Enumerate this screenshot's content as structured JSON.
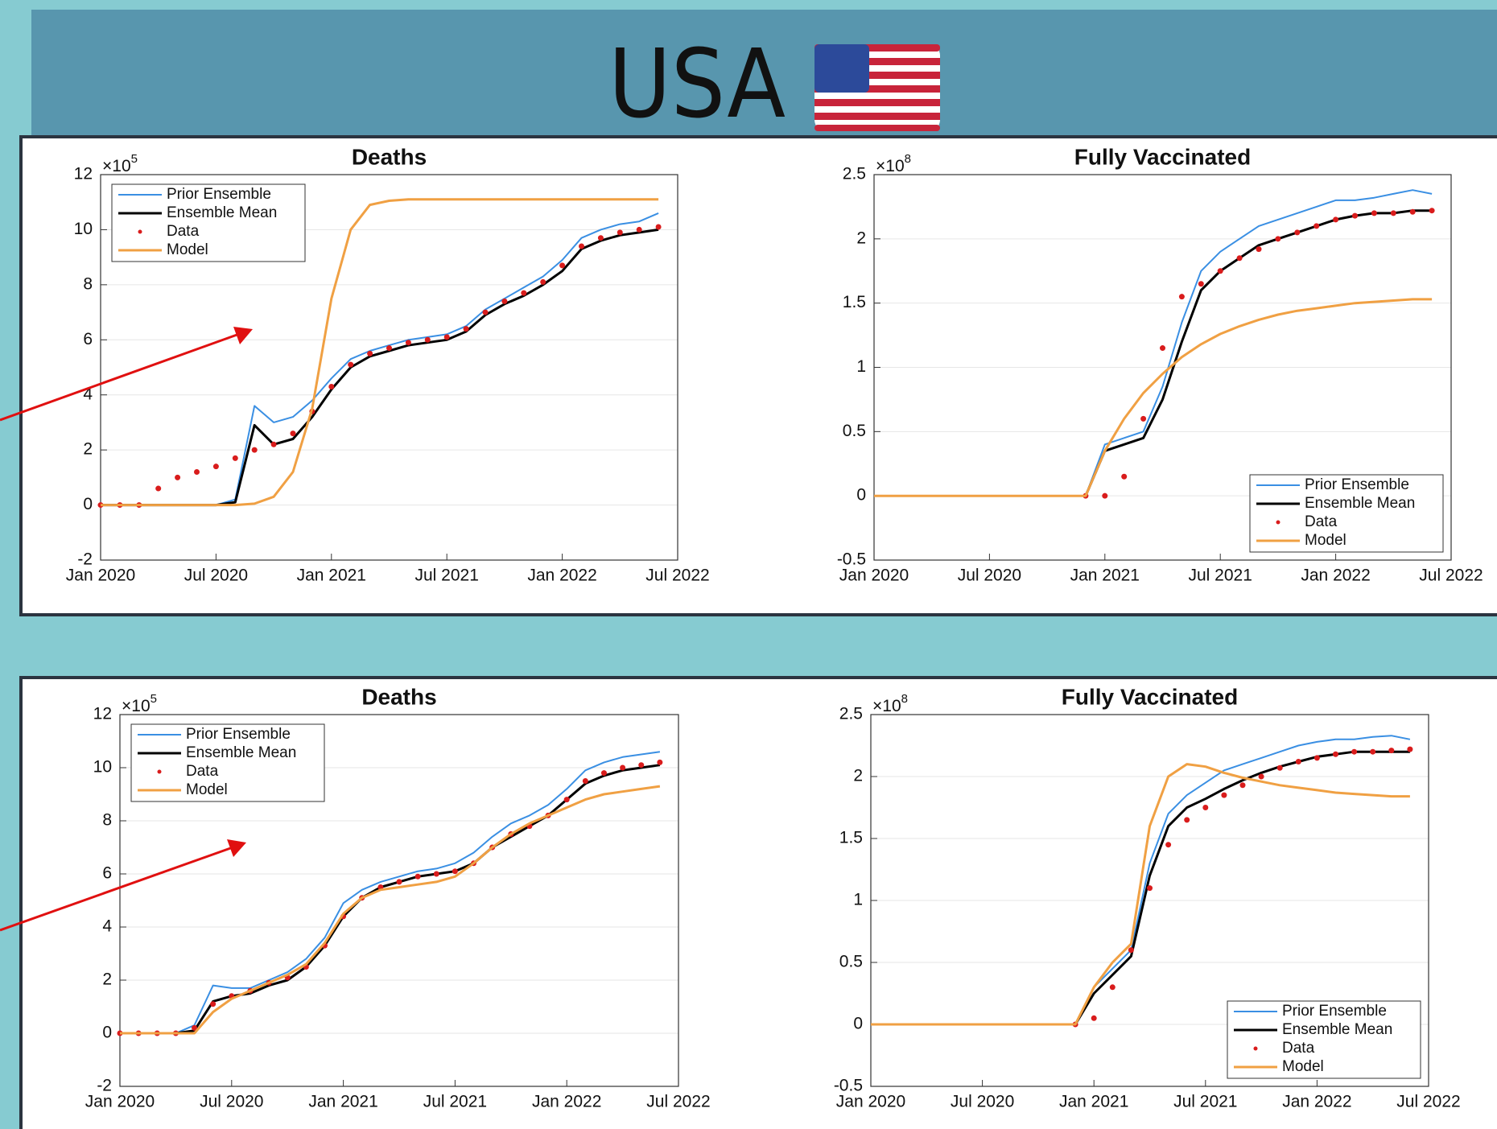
{
  "header": {
    "title": "USA"
  },
  "chart_data": [
    {
      "type": "line",
      "title": "Deaths",
      "y_multiplier": "×10",
      "y_exponent": "5",
      "legend": "upper left",
      "grid": true,
      "x": [
        "2020-01",
        "2020-02",
        "2020-03",
        "2020-04",
        "2020-05",
        "2020-06",
        "2020-07",
        "2020-08",
        "2020-09",
        "2020-10",
        "2020-11",
        "2020-12",
        "2021-01",
        "2021-02",
        "2021-03",
        "2021-04",
        "2021-05",
        "2021-06",
        "2021-07",
        "2021-08",
        "2021-09",
        "2021-10",
        "2021-11",
        "2021-12",
        "2022-01",
        "2022-02",
        "2022-03",
        "2022-04",
        "2022-05",
        "2022-06"
      ],
      "xlim": [
        "2020-01",
        "2022-07"
      ],
      "xticks": [
        {
          "value": "2020-01",
          "label": "Jan 2020"
        },
        {
          "value": "2020-07",
          "label": "Jul 2020"
        },
        {
          "value": "2021-01",
          "label": "Jan 2021"
        },
        {
          "value": "2021-07",
          "label": "Jul 2021"
        },
        {
          "value": "2022-01",
          "label": "Jan 2022"
        },
        {
          "value": "2022-07",
          "label": "Jul 2022"
        }
      ],
      "ylim": [
        -2,
        12
      ],
      "yticks": [
        -2,
        0,
        2,
        4,
        6,
        8,
        10,
        12
      ],
      "series": [
        {
          "name": "Prior Ensemble",
          "color": "#3a8fe3",
          "style": "line",
          "values": [
            0,
            0,
            0,
            0,
            0,
            0,
            0,
            0.2,
            3.6,
            3.0,
            3.2,
            3.8,
            4.6,
            5.3,
            5.6,
            5.8,
            6.0,
            6.1,
            6.2,
            6.5,
            7.1,
            7.5,
            7.9,
            8.3,
            8.9,
            9.7,
            10.0,
            10.2,
            10.3,
            10.6
          ]
        },
        {
          "name": "Ensemble Mean",
          "color": "#000000",
          "style": "line",
          "values": [
            0,
            0,
            0,
            0,
            0,
            0,
            0,
            0.1,
            2.9,
            2.2,
            2.4,
            3.2,
            4.2,
            5.0,
            5.4,
            5.6,
            5.8,
            5.9,
            6.0,
            6.3,
            6.9,
            7.3,
            7.6,
            8.0,
            8.5,
            9.3,
            9.6,
            9.8,
            9.9,
            10.0
          ]
        },
        {
          "name": "Data",
          "color": "#d91c1c",
          "style": "dots",
          "values": [
            0,
            0,
            0,
            0.6,
            1.0,
            1.2,
            1.4,
            1.7,
            2.0,
            2.2,
            2.6,
            3.4,
            4.3,
            5.1,
            5.5,
            5.7,
            5.9,
            6.0,
            6.1,
            6.4,
            7.0,
            7.4,
            7.7,
            8.1,
            8.7,
            9.4,
            9.7,
            9.9,
            10.0,
            10.1
          ]
        },
        {
          "name": "Model",
          "color": "#f0a043",
          "style": "line",
          "values": [
            0,
            0,
            0,
            0,
            0,
            0,
            0,
            0,
            0.05,
            0.3,
            1.2,
            3.5,
            7.5,
            10.0,
            10.9,
            11.05,
            11.1,
            11.1,
            11.1,
            11.1,
            11.1,
            11.1,
            11.1,
            11.1,
            11.1,
            11.1,
            11.1,
            11.1,
            11.1,
            11.1
          ]
        }
      ]
    },
    {
      "type": "line",
      "title": "Fully Vaccinated",
      "y_multiplier": "×10",
      "y_exponent": "8",
      "legend": "lower right",
      "grid": true,
      "x": [
        "2020-01",
        "2020-02",
        "2020-03",
        "2020-04",
        "2020-05",
        "2020-06",
        "2020-07",
        "2020-08",
        "2020-09",
        "2020-10",
        "2020-11",
        "2020-12",
        "2021-01",
        "2021-02",
        "2021-03",
        "2021-04",
        "2021-05",
        "2021-06",
        "2021-07",
        "2021-08",
        "2021-09",
        "2021-10",
        "2021-11",
        "2021-12",
        "2022-01",
        "2022-02",
        "2022-03",
        "2022-04",
        "2022-05",
        "2022-06"
      ],
      "xlim": [
        "2020-01",
        "2022-07"
      ],
      "xticks": [
        {
          "value": "2020-01",
          "label": "Jan 2020"
        },
        {
          "value": "2020-07",
          "label": "Jul 2020"
        },
        {
          "value": "2021-01",
          "label": "Jan 2021"
        },
        {
          "value": "2021-07",
          "label": "Jul 2021"
        },
        {
          "value": "2022-01",
          "label": "Jan 2022"
        },
        {
          "value": "2022-07",
          "label": "Jul 2022"
        }
      ],
      "ylim": [
        -0.5,
        2.5
      ],
      "yticks": [
        -0.5,
        0,
        0.5,
        1,
        1.5,
        2,
        2.5
      ],
      "series": [
        {
          "name": "Prior Ensemble",
          "color": "#3a8fe3",
          "style": "line",
          "values": [
            null,
            null,
            null,
            null,
            null,
            null,
            null,
            null,
            null,
            null,
            null,
            0,
            0.4,
            0.45,
            0.5,
            0.85,
            1.35,
            1.75,
            1.9,
            2.0,
            2.1,
            2.15,
            2.2,
            2.25,
            2.3,
            2.3,
            2.32,
            2.35,
            2.38,
            2.35
          ]
        },
        {
          "name": "Ensemble Mean",
          "color": "#000000",
          "style": "line",
          "values": [
            null,
            null,
            null,
            null,
            null,
            null,
            null,
            null,
            null,
            null,
            null,
            0,
            0.35,
            0.4,
            0.45,
            0.75,
            1.2,
            1.6,
            1.75,
            1.85,
            1.95,
            2.0,
            2.05,
            2.1,
            2.15,
            2.18,
            2.2,
            2.2,
            2.22,
            2.22
          ]
        },
        {
          "name": "Data",
          "color": "#d91c1c",
          "style": "dots",
          "values": [
            null,
            null,
            null,
            null,
            null,
            null,
            null,
            null,
            null,
            null,
            null,
            0,
            0,
            0.15,
            0.6,
            1.15,
            1.55,
            1.65,
            1.75,
            1.85,
            1.92,
            2.0,
            2.05,
            2.1,
            2.15,
            2.18,
            2.2,
            2.2,
            2.21,
            2.22
          ]
        },
        {
          "name": "Model",
          "color": "#f0a043",
          "style": "line",
          "values": [
            0,
            0,
            0,
            0,
            0,
            0,
            0,
            0,
            0,
            0,
            0,
            0,
            0.35,
            0.6,
            0.8,
            0.95,
            1.08,
            1.18,
            1.26,
            1.32,
            1.37,
            1.41,
            1.44,
            1.46,
            1.48,
            1.5,
            1.51,
            1.52,
            1.53,
            1.53
          ]
        }
      ]
    },
    {
      "type": "line",
      "title": "Deaths",
      "y_multiplier": "×10",
      "y_exponent": "5",
      "legend": "upper left",
      "grid": true,
      "x": [
        "2020-01",
        "2020-02",
        "2020-03",
        "2020-04",
        "2020-05",
        "2020-06",
        "2020-07",
        "2020-08",
        "2020-09",
        "2020-10",
        "2020-11",
        "2020-12",
        "2021-01",
        "2021-02",
        "2021-03",
        "2021-04",
        "2021-05",
        "2021-06",
        "2021-07",
        "2021-08",
        "2021-09",
        "2021-10",
        "2021-11",
        "2021-12",
        "2022-01",
        "2022-02",
        "2022-03",
        "2022-04",
        "2022-05",
        "2022-06"
      ],
      "xlim": [
        "2020-01",
        "2022-07"
      ],
      "xticks": [
        {
          "value": "2020-01",
          "label": "Jan 2020"
        },
        {
          "value": "2020-07",
          "label": "Jul 2020"
        },
        {
          "value": "2021-01",
          "label": "Jan 2021"
        },
        {
          "value": "2021-07",
          "label": "Jul 2021"
        },
        {
          "value": "2022-01",
          "label": "Jan 2022"
        },
        {
          "value": "2022-07",
          "label": "Jul 2022"
        }
      ],
      "ylim": [
        -2,
        12
      ],
      "yticks": [
        -2,
        0,
        2,
        4,
        6,
        8,
        10,
        12
      ],
      "series": [
        {
          "name": "Prior Ensemble",
          "color": "#3a8fe3",
          "style": "line",
          "values": [
            0,
            0,
            0,
            0,
            0.3,
            1.8,
            1.7,
            1.7,
            2.0,
            2.3,
            2.8,
            3.6,
            4.9,
            5.4,
            5.7,
            5.9,
            6.1,
            6.2,
            6.4,
            6.8,
            7.4,
            7.9,
            8.2,
            8.6,
            9.2,
            9.9,
            10.2,
            10.4,
            10.5,
            10.6
          ]
        },
        {
          "name": "Ensemble Mean",
          "color": "#000000",
          "style": "line",
          "values": [
            0,
            0,
            0,
            0,
            0.1,
            1.2,
            1.4,
            1.5,
            1.8,
            2.0,
            2.5,
            3.3,
            4.4,
            5.1,
            5.5,
            5.7,
            5.9,
            6.0,
            6.1,
            6.4,
            7.0,
            7.4,
            7.8,
            8.2,
            8.8,
            9.4,
            9.7,
            9.9,
            10.0,
            10.1
          ]
        },
        {
          "name": "Data",
          "color": "#d91c1c",
          "style": "dots",
          "values": [
            0,
            0,
            0,
            0,
            0.2,
            1.1,
            1.4,
            1.6,
            1.9,
            2.1,
            2.5,
            3.3,
            4.4,
            5.1,
            5.5,
            5.7,
            5.9,
            6.0,
            6.1,
            6.4,
            7.0,
            7.5,
            7.8,
            8.2,
            8.8,
            9.5,
            9.8,
            10.0,
            10.1,
            10.2
          ]
        },
        {
          "name": "Model",
          "color": "#f0a043",
          "style": "line",
          "values": [
            0,
            0,
            0,
            0,
            0,
            0.8,
            1.3,
            1.6,
            1.9,
            2.2,
            2.6,
            3.4,
            4.5,
            5.1,
            5.4,
            5.5,
            5.6,
            5.7,
            5.9,
            6.4,
            7.0,
            7.5,
            7.9,
            8.2,
            8.5,
            8.8,
            9.0,
            9.1,
            9.2,
            9.3
          ]
        }
      ]
    },
    {
      "type": "line",
      "title": "Fully Vaccinated",
      "y_multiplier": "×10",
      "y_exponent": "8",
      "legend": "lower right",
      "grid": true,
      "x": [
        "2020-01",
        "2020-02",
        "2020-03",
        "2020-04",
        "2020-05",
        "2020-06",
        "2020-07",
        "2020-08",
        "2020-09",
        "2020-10",
        "2020-11",
        "2020-12",
        "2021-01",
        "2021-02",
        "2021-03",
        "2021-04",
        "2021-05",
        "2021-06",
        "2021-07",
        "2021-08",
        "2021-09",
        "2021-10",
        "2021-11",
        "2021-12",
        "2022-01",
        "2022-02",
        "2022-03",
        "2022-04",
        "2022-05",
        "2022-06"
      ],
      "xlim": [
        "2020-01",
        "2022-07"
      ],
      "xticks": [
        {
          "value": "2020-01",
          "label": "Jan 2020"
        },
        {
          "value": "2020-07",
          "label": "Jul 2020"
        },
        {
          "value": "2021-01",
          "label": "Jan 2021"
        },
        {
          "value": "2021-07",
          "label": "Jul 2021"
        },
        {
          "value": "2022-01",
          "label": "Jan 2022"
        },
        {
          "value": "2022-07",
          "label": "Jul 2022"
        }
      ],
      "ylim": [
        -0.5,
        2.5
      ],
      "yticks": [
        -0.5,
        0,
        0.5,
        1,
        1.5,
        2,
        2.5
      ],
      "series": [
        {
          "name": "Prior Ensemble",
          "color": "#3a8fe3",
          "style": "line",
          "values": [
            null,
            null,
            null,
            null,
            null,
            null,
            null,
            null,
            null,
            null,
            null,
            0,
            0.3,
            0.45,
            0.6,
            1.3,
            1.7,
            1.85,
            1.95,
            2.05,
            2.1,
            2.15,
            2.2,
            2.25,
            2.28,
            2.3,
            2.3,
            2.32,
            2.33,
            2.3
          ]
        },
        {
          "name": "Ensemble Mean",
          "color": "#000000",
          "style": "line",
          "values": [
            null,
            null,
            null,
            null,
            null,
            null,
            null,
            null,
            null,
            null,
            null,
            0,
            0.25,
            0.4,
            0.55,
            1.2,
            1.6,
            1.75,
            1.82,
            1.9,
            1.97,
            2.03,
            2.08,
            2.12,
            2.16,
            2.18,
            2.2,
            2.2,
            2.2,
            2.2
          ]
        },
        {
          "name": "Data",
          "color": "#d91c1c",
          "style": "dots",
          "values": [
            null,
            null,
            null,
            null,
            null,
            null,
            null,
            null,
            null,
            null,
            null,
            0,
            0.05,
            0.3,
            0.6,
            1.1,
            1.45,
            1.65,
            1.75,
            1.85,
            1.93,
            2.0,
            2.07,
            2.12,
            2.15,
            2.18,
            2.2,
            2.2,
            2.21,
            2.22
          ]
        },
        {
          "name": "Model",
          "color": "#f0a043",
          "style": "line",
          "values": [
            0,
            0,
            0,
            0,
            0,
            0,
            0,
            0,
            0,
            0,
            0,
            0,
            0.3,
            0.5,
            0.65,
            1.6,
            2.0,
            2.1,
            2.08,
            2.03,
            1.99,
            1.96,
            1.93,
            1.91,
            1.89,
            1.87,
            1.86,
            1.85,
            1.84,
            1.84
          ]
        }
      ]
    }
  ]
}
